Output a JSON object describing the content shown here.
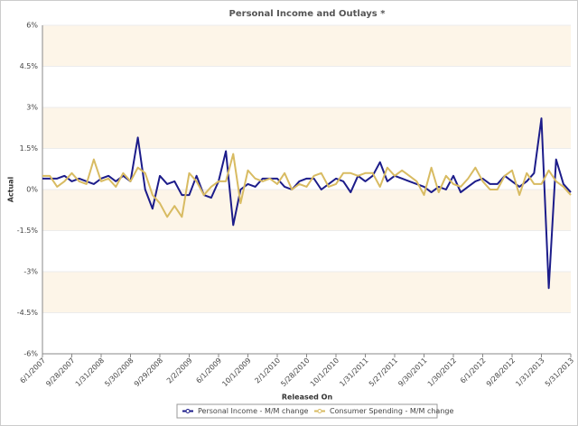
{
  "chart_data": {
    "type": "line",
    "title": "Personal Income and Outlays *",
    "x_label": "Released On",
    "y_label": "Actual",
    "categories": [
      "6/1/2007",
      null,
      null,
      null,
      "9/28/2007",
      null,
      null,
      null,
      "1/31/2008",
      null,
      null,
      null,
      "5/30/2008",
      null,
      null,
      null,
      "9/29/2008",
      null,
      null,
      null,
      "2/2/2009",
      null,
      null,
      null,
      "6/1/2009",
      null,
      null,
      null,
      "10/1/2009",
      null,
      null,
      null,
      "2/1/2010",
      null,
      null,
      null,
      "5/28/2010",
      null,
      null,
      null,
      "10/1/2010",
      null,
      null,
      null,
      "1/31/2011",
      null,
      null,
      null,
      "5/27/2011",
      null,
      null,
      null,
      "9/30/2011",
      null,
      null,
      null,
      "1/30/2012",
      null,
      null,
      null,
      "6/1/2012",
      null,
      null,
      null,
      "9/28/2012",
      null,
      null,
      null,
      "1/31/2013",
      null,
      null,
      null,
      "5/31/2013"
    ],
    "series": [
      {
        "name": "Personal Income - M/M change",
        "color": "#1c1c8a",
        "values": [
          0.4,
          0.4,
          0.4,
          0.5,
          0.3,
          0.4,
          0.3,
          0.2,
          0.4,
          0.5,
          0.3,
          0.5,
          0.3,
          1.9,
          0.0,
          -0.7,
          0.5,
          0.2,
          0.3,
          -0.2,
          -0.2,
          0.5,
          -0.2,
          -0.3,
          0.3,
          1.4,
          -1.3,
          0.0,
          0.2,
          0.1,
          0.4,
          0.4,
          0.4,
          0.1,
          0.0,
          0.3,
          0.4,
          0.4,
          0.0,
          0.2,
          0.4,
          0.3,
          -0.1,
          0.5,
          0.3,
          0.5,
          1.0,
          0.3,
          0.5,
          0.4,
          0.3,
          0.2,
          0.1,
          -0.1,
          0.1,
          0.0,
          0.5,
          -0.1,
          0.1,
          0.3,
          0.4,
          0.2,
          0.2,
          0.5,
          0.3,
          0.1,
          0.3,
          0.6,
          2.6,
          -3.6,
          1.1,
          0.2,
          -0.1
        ]
      },
      {
        "name": "Consumer Spending - M/M change",
        "color": "#d8bb62",
        "values": [
          0.5,
          0.5,
          0.1,
          0.3,
          0.6,
          0.3,
          0.2,
          1.1,
          0.3,
          0.4,
          0.1,
          0.6,
          0.3,
          0.8,
          0.6,
          -0.2,
          -0.5,
          -1.0,
          -0.6,
          -1.0,
          0.6,
          0.3,
          -0.2,
          0.1,
          0.3,
          0.3,
          1.3,
          -0.5,
          0.7,
          0.4,
          0.3,
          0.4,
          0.2,
          0.6,
          0.0,
          0.2,
          0.1,
          0.5,
          0.6,
          0.1,
          0.2,
          0.6,
          0.6,
          0.5,
          0.6,
          0.6,
          0.1,
          0.8,
          0.5,
          0.7,
          0.5,
          0.3,
          -0.2,
          0.8,
          -0.1,
          0.5,
          0.2,
          0.1,
          0.4,
          0.8,
          0.3,
          0.0,
          0.0,
          0.5,
          0.7,
          -0.2,
          0.6,
          0.2,
          0.2,
          0.7,
          0.3,
          0.1,
          -0.2
        ]
      }
    ],
    "ylim": [
      -6,
      6
    ],
    "yticks": [
      {
        "value": -6,
        "label": "-6%"
      },
      {
        "value": -4.5,
        "label": "-4.5%"
      },
      {
        "value": -3,
        "label": "-3%"
      },
      {
        "value": -1.5,
        "label": "-1.5%"
      },
      {
        "value": 0,
        "label": "0%"
      },
      {
        "value": 1.5,
        "label": "1.5%"
      },
      {
        "value": 3,
        "label": "3%"
      },
      {
        "value": 4.5,
        "label": "4.5%"
      },
      {
        "value": 6,
        "label": "6%"
      }
    ],
    "grid": true
  }
}
